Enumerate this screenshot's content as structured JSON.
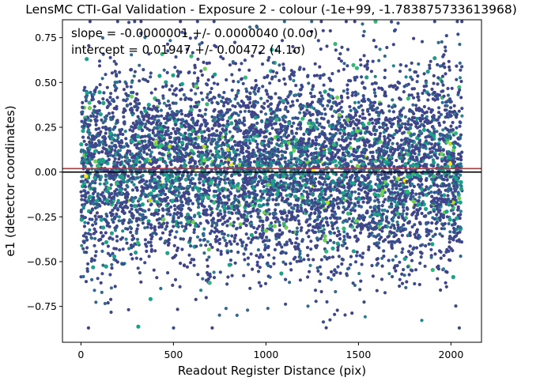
{
  "chart_data": {
    "type": "scatter",
    "title": "LensMC CTI-Gal Validation - Exposure 2 - colour (-1e+99, -1.783875733613968)",
    "xlabel": "Readout Register Distance (pix)",
    "ylabel": "e1 (detector coordinates)",
    "xlim": [
      -100,
      2165
    ],
    "ylim": [
      -0.95,
      0.85
    ],
    "xticks": [
      0,
      500,
      1000,
      1500,
      2000
    ],
    "yticks": [
      -0.75,
      -0.5,
      -0.25,
      0.0,
      0.25,
      0.5,
      0.75
    ],
    "ytick_labels": [
      "−0.75",
      "−0.50",
      "−0.25",
      "0.00",
      "0.25",
      "0.50",
      "0.75"
    ],
    "grid": false,
    "annotations": [
      "slope = -0.0000001 +/- 0.0000040 (0.0σ)",
      "intercept = 0.01947 +/- 0.00472 (4.1σ)"
    ],
    "lines": [
      {
        "name": "zero",
        "y": 0.0,
        "color": "#000000"
      },
      {
        "name": "fit",
        "y": 0.01947,
        "slope": -1e-07,
        "color": "#d62728"
      }
    ],
    "scatter": {
      "x_range": [
        0,
        2060
      ],
      "count": 6500,
      "distribution": "e1 roughly normal, mean 0.02, std 0.28, clipped to [-0.87, 0.84]",
      "colormap": "viridis",
      "colors": [
        "#3b4b8c",
        "#404387",
        "#31688e",
        "#26828e",
        "#1f9e89",
        "#35b779",
        "#6ece58",
        "#b5de2b",
        "#fde725"
      ]
    }
  }
}
